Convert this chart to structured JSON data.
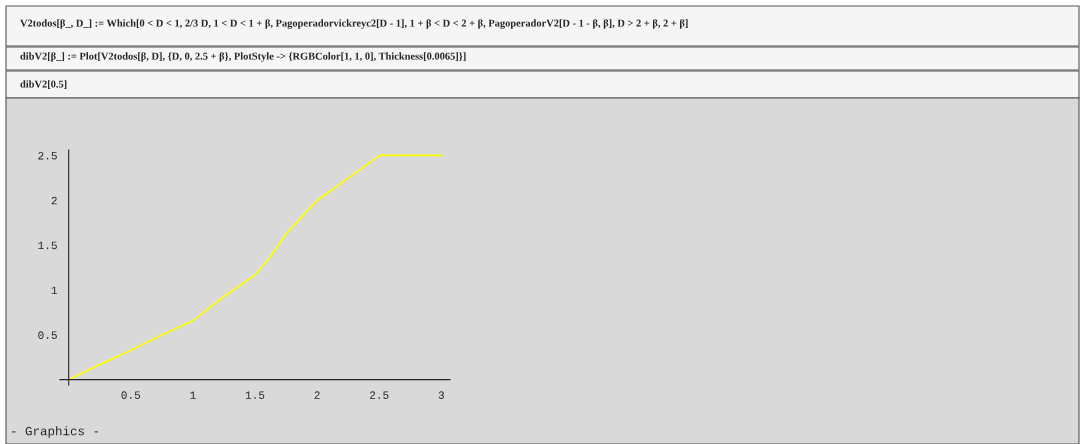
{
  "chart_data": {
    "type": "line",
    "x": [
      0,
      0.25,
      0.5,
      0.75,
      1,
      1.25,
      1.5,
      1.62,
      1.75,
      1.97,
      2,
      2.25,
      2.5,
      3
    ],
    "series": [
      {
        "color": "#ffff00",
        "values": [
          0,
          0.17,
          0.33,
          0.5,
          0.66,
          0.93,
          1.17,
          1.37,
          1.63,
          1.96,
          2,
          2.25,
          2.5,
          2.5
        ]
      }
    ],
    "xlim": [
      -0.07,
      3.07
    ],
    "ylim": [
      -0.06,
      2.56
    ],
    "xticks": [
      0.5,
      1,
      1.5,
      2,
      2.5,
      3
    ],
    "yticks": [
      0.5,
      1,
      1.5,
      2,
      2.5
    ],
    "grid": false,
    "legend": false,
    "marker": "none",
    "line_style": "solid",
    "annotations": [
      "V2todos[β_, D_] := Which[0 < D < 1, 2/3 D, 1 < D < 1 + β, Pagoperadorvickreyc2[D - 1], 1 + β < D < 2 + β, PagoperadorV2[D - 1 - β, β], D > 2 + β, 2 + β]",
      "dibV2[β_] := Plot[V2todos[β, D], {D, 0, 2.5 + β}, PlotStyle -> {RGBColor[1, 1, 0], Thickness[0.0065]}]",
      "dibV2[0.5]",
      "- Graphics -"
    ]
  }
}
